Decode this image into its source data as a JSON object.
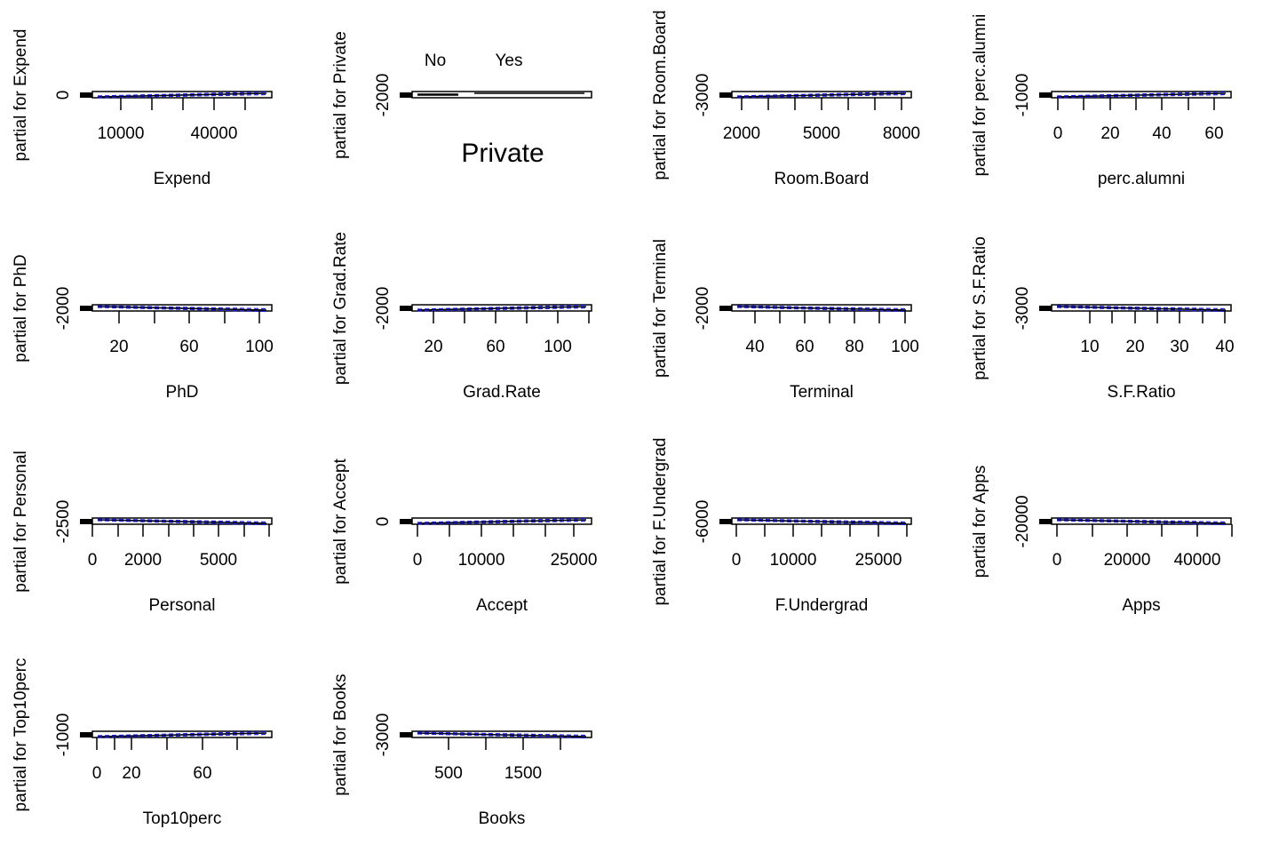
{
  "figure": {
    "layout": "4x4 grid of partial dependence panels (R gam plot)",
    "colors": {
      "fit_line": "#000000",
      "band_line": "#1f1fd6",
      "frame": "#000000",
      "background": "#ffffff"
    }
  },
  "chart_data": [
    {
      "type": "line",
      "xlabel": "Expend",
      "ylabel": "partial for Expend",
      "x_ticks": [
        "10000",
        "40000"
      ],
      "y_ticks": [
        "0"
      ],
      "x_range": [
        3186,
        56233
      ]
    },
    {
      "type": "bar",
      "xlabel": "Private",
      "ylabel": "partial for Private",
      "categories": [
        "No",
        "Yes"
      ],
      "y_ticks": [
        "-2000"
      ]
    },
    {
      "type": "line",
      "xlabel": "Room.Board",
      "ylabel": "partial for Room.Board",
      "x_ticks": [
        "2000",
        "5000",
        "8000"
      ],
      "y_ticks": [
        "-3000"
      ],
      "x_range": [
        1780,
        8124
      ]
    },
    {
      "type": "line",
      "xlabel": "perc.alumni",
      "ylabel": "partial for perc.alumni",
      "x_ticks": [
        "0",
        "20",
        "40",
        "60"
      ],
      "y_ticks": [
        "-1000"
      ],
      "x_range": [
        0,
        64
      ]
    },
    {
      "type": "line",
      "xlabel": "PhD",
      "ylabel": "partial for PhD",
      "x_ticks": [
        "20",
        "60",
        "100"
      ],
      "y_ticks": [
        "-2000"
      ],
      "x_range": [
        8,
        103
      ]
    },
    {
      "type": "line",
      "xlabel": "Grad.Rate",
      "ylabel": "partial for Grad.Rate",
      "x_ticks": [
        "20",
        "60",
        "100"
      ],
      "y_ticks": [
        "-2000"
      ],
      "x_range": [
        10,
        118
      ]
    },
    {
      "type": "line",
      "xlabel": "Terminal",
      "ylabel": "partial for Terminal",
      "x_ticks": [
        "40",
        "60",
        "80",
        "100"
      ],
      "y_ticks": [
        "-2000"
      ],
      "x_range": [
        24,
        100
      ]
    },
    {
      "type": "line",
      "xlabel": "S.F.Ratio",
      "ylabel": "partial for S.F.Ratio",
      "x_ticks": [
        "10",
        "20",
        "30",
        "40"
      ],
      "y_ticks": [
        "-3000"
      ],
      "x_range": [
        2.5,
        39.8
      ]
    },
    {
      "type": "line",
      "xlabel": "Personal",
      "ylabel": "partial for Personal",
      "x_ticks": [
        "0",
        "2000",
        "5000"
      ],
      "y_ticks": [
        "-2500"
      ],
      "x_range": [
        250,
        6800
      ]
    },
    {
      "type": "line",
      "xlabel": "Accept",
      "ylabel": "partial for Accept",
      "x_ticks": [
        "0",
        "10000",
        "25000"
      ],
      "y_ticks": [
        "0"
      ],
      "x_range": [
        72,
        26330
      ]
    },
    {
      "type": "line",
      "xlabel": "F.Undergrad",
      "ylabel": "partial for F.Undergrad",
      "x_ticks": [
        "0",
        "10000",
        "25000"
      ],
      "y_ticks": [
        "-6000"
      ],
      "x_range": [
        139,
        31643
      ]
    },
    {
      "type": "line",
      "xlabel": "Apps",
      "ylabel": "partial for Apps",
      "x_ticks": [
        "0",
        "20000",
        "40000"
      ],
      "y_ticks": [
        "-20000"
      ],
      "x_range": [
        81,
        48094
      ]
    },
    {
      "type": "line",
      "xlabel": "Top10perc",
      "ylabel": "partial for Top10perc",
      "x_ticks": [
        "0",
        "20",
        "60"
      ],
      "y_ticks": [
        "-1000"
      ],
      "x_range": [
        1,
        96
      ]
    },
    {
      "type": "line",
      "xlabel": "Books",
      "ylabel": "partial for Books",
      "x_ticks": [
        "500",
        "1500"
      ],
      "y_ticks": [
        "-3000"
      ],
      "x_range": [
        96,
        2340
      ]
    }
  ]
}
